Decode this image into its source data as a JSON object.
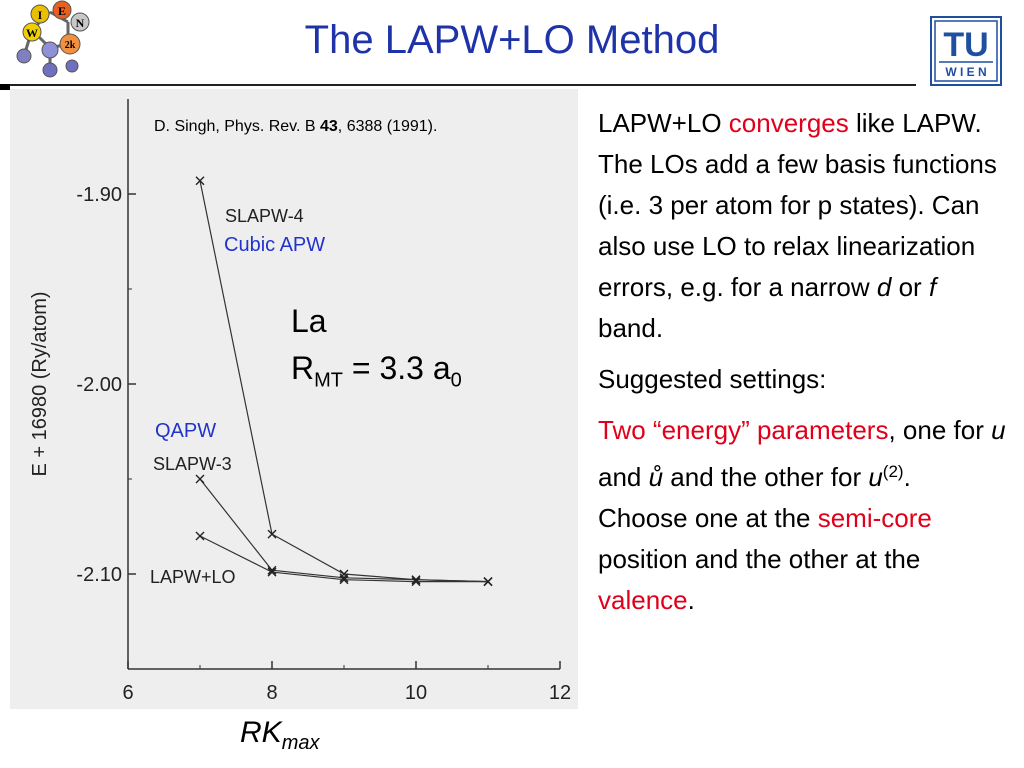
{
  "header": {
    "title": "The LAPW+LO Method",
    "logo_left_letters": [
      "I",
      "E",
      "W",
      "N",
      "2k"
    ],
    "logo_right_top": "TU",
    "logo_right_bottom": "W I E N"
  },
  "figure": {
    "reference_prefix": "D. Singh, Phys. Rev. B ",
    "reference_volume": "43",
    "reference_suffix": ", 6388 (1991).",
    "annotation_cubic": "Cubic APW",
    "annotation_qapw": "QAPW",
    "annotation_la": "La",
    "annotation_rmt_r": "R",
    "annotation_rmt_sub": "MT",
    "annotation_rmt_value": " = 3.3 a",
    "annotation_rmt_sub0": "0",
    "xtitle_main": "RK",
    "xtitle_sub": "max"
  },
  "chart_data": {
    "type": "line",
    "ylabel": "E + 16980 (Ry/atom)",
    "xlim": [
      6,
      12
    ],
    "ylim": [
      -2.15,
      -1.85
    ],
    "xticks": [
      6,
      8,
      10,
      12
    ],
    "yticks": [
      -1.9,
      -2.0,
      -2.1
    ],
    "ytick_labels": [
      "-1.90",
      "-2.00",
      "-2.10"
    ],
    "grid": false,
    "series": [
      {
        "name": "SLAPW-4",
        "x": [
          7,
          8,
          9,
          10,
          11
        ],
        "y": [
          -1.893,
          -2.079,
          -2.1,
          -2.103,
          -2.104
        ]
      },
      {
        "name": "SLAPW-3",
        "x": [
          7,
          8,
          9,
          10,
          11
        ],
        "y": [
          -2.05,
          -2.098,
          -2.102,
          -2.103,
          -2.104
        ]
      },
      {
        "name": "LAPW+LO",
        "x": [
          7,
          8,
          9,
          10,
          11
        ],
        "y": [
          -2.08,
          -2.099,
          -2.103,
          -2.104,
          -2.104
        ]
      }
    ]
  },
  "body": {
    "p1_a": "LAPW+LO ",
    "p1_b": "converges",
    "p1_c": " like LAPW. The LOs add a few basis functions (i.e. 3 per atom for p states). Can also use LO to relax linearization errors, e.g. for a narrow ",
    "p1_d": "d",
    "p1_e": " or ",
    "p1_f": "f",
    "p1_g": " band.",
    "p2": "Suggested settings:",
    "p3_a": "Two “energy” parameters",
    "p3_b": ", one for ",
    "p3_c": "u",
    "p3_d": " and ",
    "p3_e": "ů",
    "p3_f": " and the other for ",
    "p3_g": "u",
    "p3_h": "(2)",
    "p3_i": ". Choose one at the ",
    "p3_j": "semi-core",
    "p3_k": " position and the other at the ",
    "p3_l": "valence",
    "p3_m": "."
  }
}
